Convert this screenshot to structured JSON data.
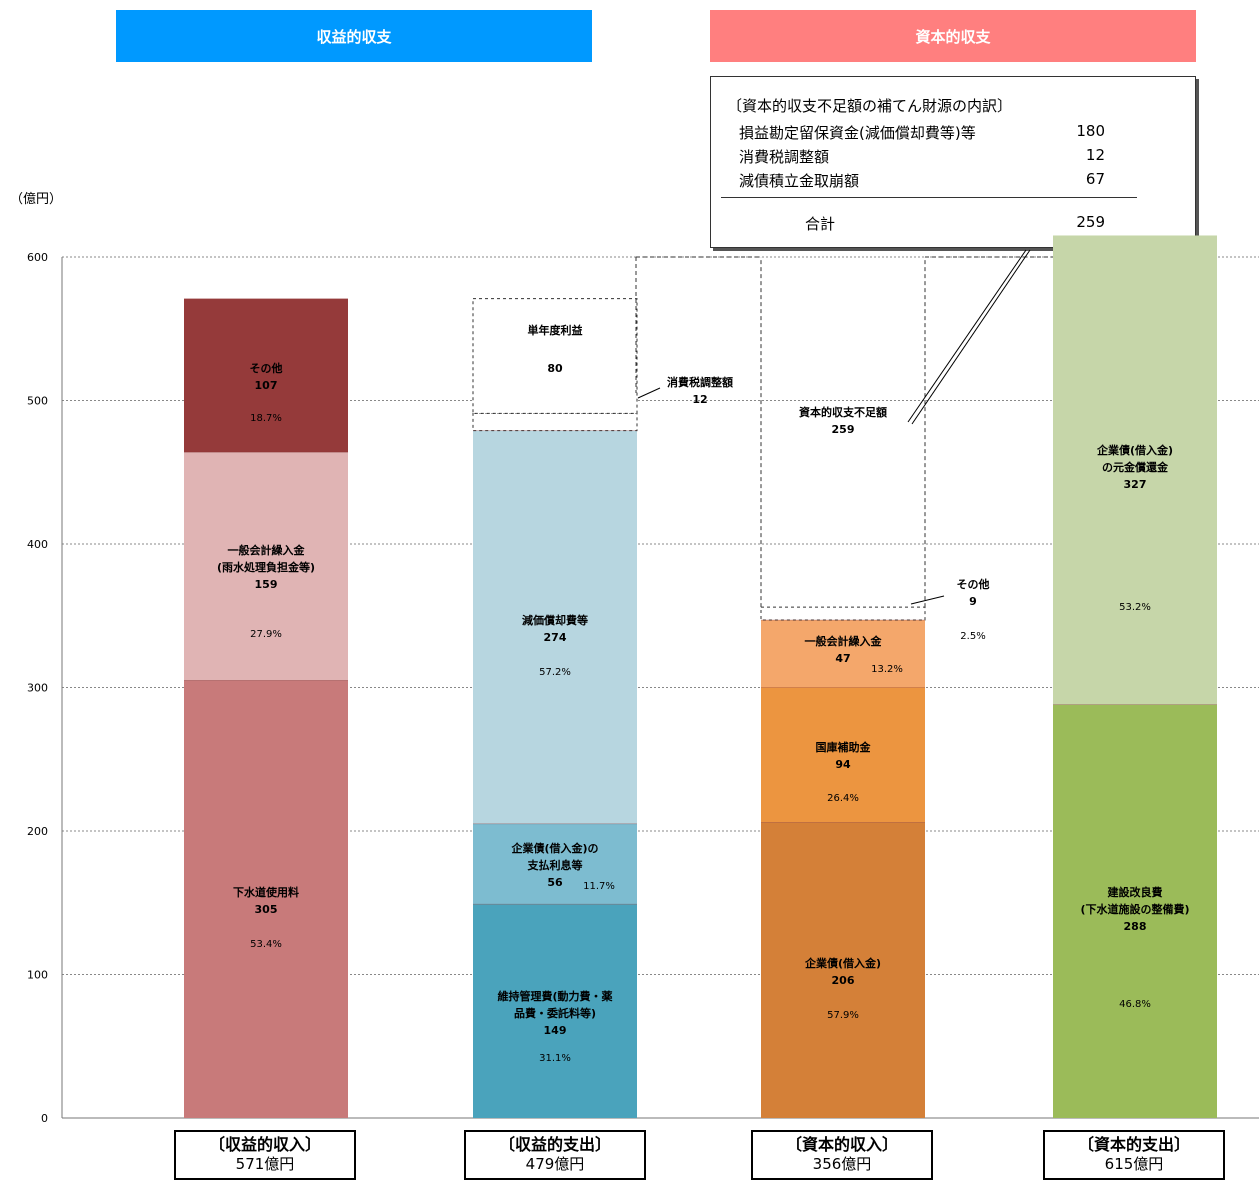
{
  "header": {
    "left": "収益的収支",
    "right": "資本的収支"
  },
  "unit_label": "（億円）",
  "breakdown": {
    "title": "〔資本的収支不足額の補てん財源の内訳〕",
    "rows": [
      {
        "label": "損益勘定留保資金(減価償却費等)等",
        "value": "180"
      },
      {
        "label": "消費税調整額",
        "value": "12"
      },
      {
        "label": "減債積立金取崩額",
        "value": "67"
      }
    ],
    "total": {
      "label": "合計",
      "value": "259"
    }
  },
  "chart_data": {
    "type": "bar",
    "stacked": true,
    "title": "",
    "ylabel": "（億円）",
    "ylim": [
      0,
      600
    ],
    "yticks": [
      "0",
      "100",
      "200",
      "300",
      "400",
      "500",
      "600"
    ],
    "grid": true,
    "categories": [
      {
        "name": "〔収益的収入〕",
        "total": "571億円"
      },
      {
        "name": "〔収益的支出〕",
        "total": "479億円"
      },
      {
        "name": "〔資本的収入〕",
        "total": "356億円"
      },
      {
        "name": "〔資本的支出〕",
        "total": "615億円"
      }
    ],
    "stacks": [
      [
        {
          "label": "下水道使用料",
          "value": 305,
          "pct": "53.4%",
          "color": "#c87a7a"
        },
        {
          "label": "一般会計繰入金\n(雨水処理負担金等)",
          "value": 159,
          "pct": "27.9%",
          "color": "#e0b4b4"
        },
        {
          "label": "その他",
          "value": 107,
          "pct": "18.7%",
          "color": "#953a3a"
        }
      ],
      [
        {
          "label": "維持管理費(動力費・薬\n品費・委託料等)",
          "value": 149,
          "pct": "31.1%",
          "color": "#4aa3bc"
        },
        {
          "label": "企業債(借入金)の\n支払利息等",
          "value": 56,
          "pct": "11.7%",
          "color": "#7dbcd0"
        },
        {
          "label": "減価償却費等",
          "value": 274,
          "pct": "57.2%",
          "color": "#b7d6e0"
        },
        {
          "label": "消費税調整額",
          "value": 12,
          "pct": "",
          "color": "#ffffff",
          "dashed": true,
          "outside": true
        },
        {
          "label": "単年度利益",
          "value": 80,
          "pct": "",
          "color": "#ffffff",
          "dashed": true
        }
      ],
      [
        {
          "label": "企業債(借入金)",
          "value": 206,
          "pct": "57.9%",
          "color": "#d48038"
        },
        {
          "label": "国庫補助金",
          "value": 94,
          "pct": "26.4%",
          "color": "#ec9540"
        },
        {
          "label": "一般会計繰入金",
          "value": 47,
          "pct": "13.2%",
          "color": "#f4a76b"
        },
        {
          "label": "その他",
          "value": 9,
          "pct": "2.5%",
          "color": "#ffffff",
          "dashed": true,
          "outside": true
        },
        {
          "label": "資本的収支不足額",
          "value": 259,
          "pct": "",
          "color": "#ffffff",
          "dashed": true,
          "open": true
        }
      ],
      [
        {
          "label": "建設改良費\n(下水道施設の整備費)",
          "value": 288,
          "pct": "46.8%",
          "color": "#9bbb59"
        },
        {
          "label": "企業債(借入金)\nの元金償還金",
          "value": 327,
          "pct": "53.2%",
          "color": "#c6d6a9"
        }
      ]
    ]
  }
}
